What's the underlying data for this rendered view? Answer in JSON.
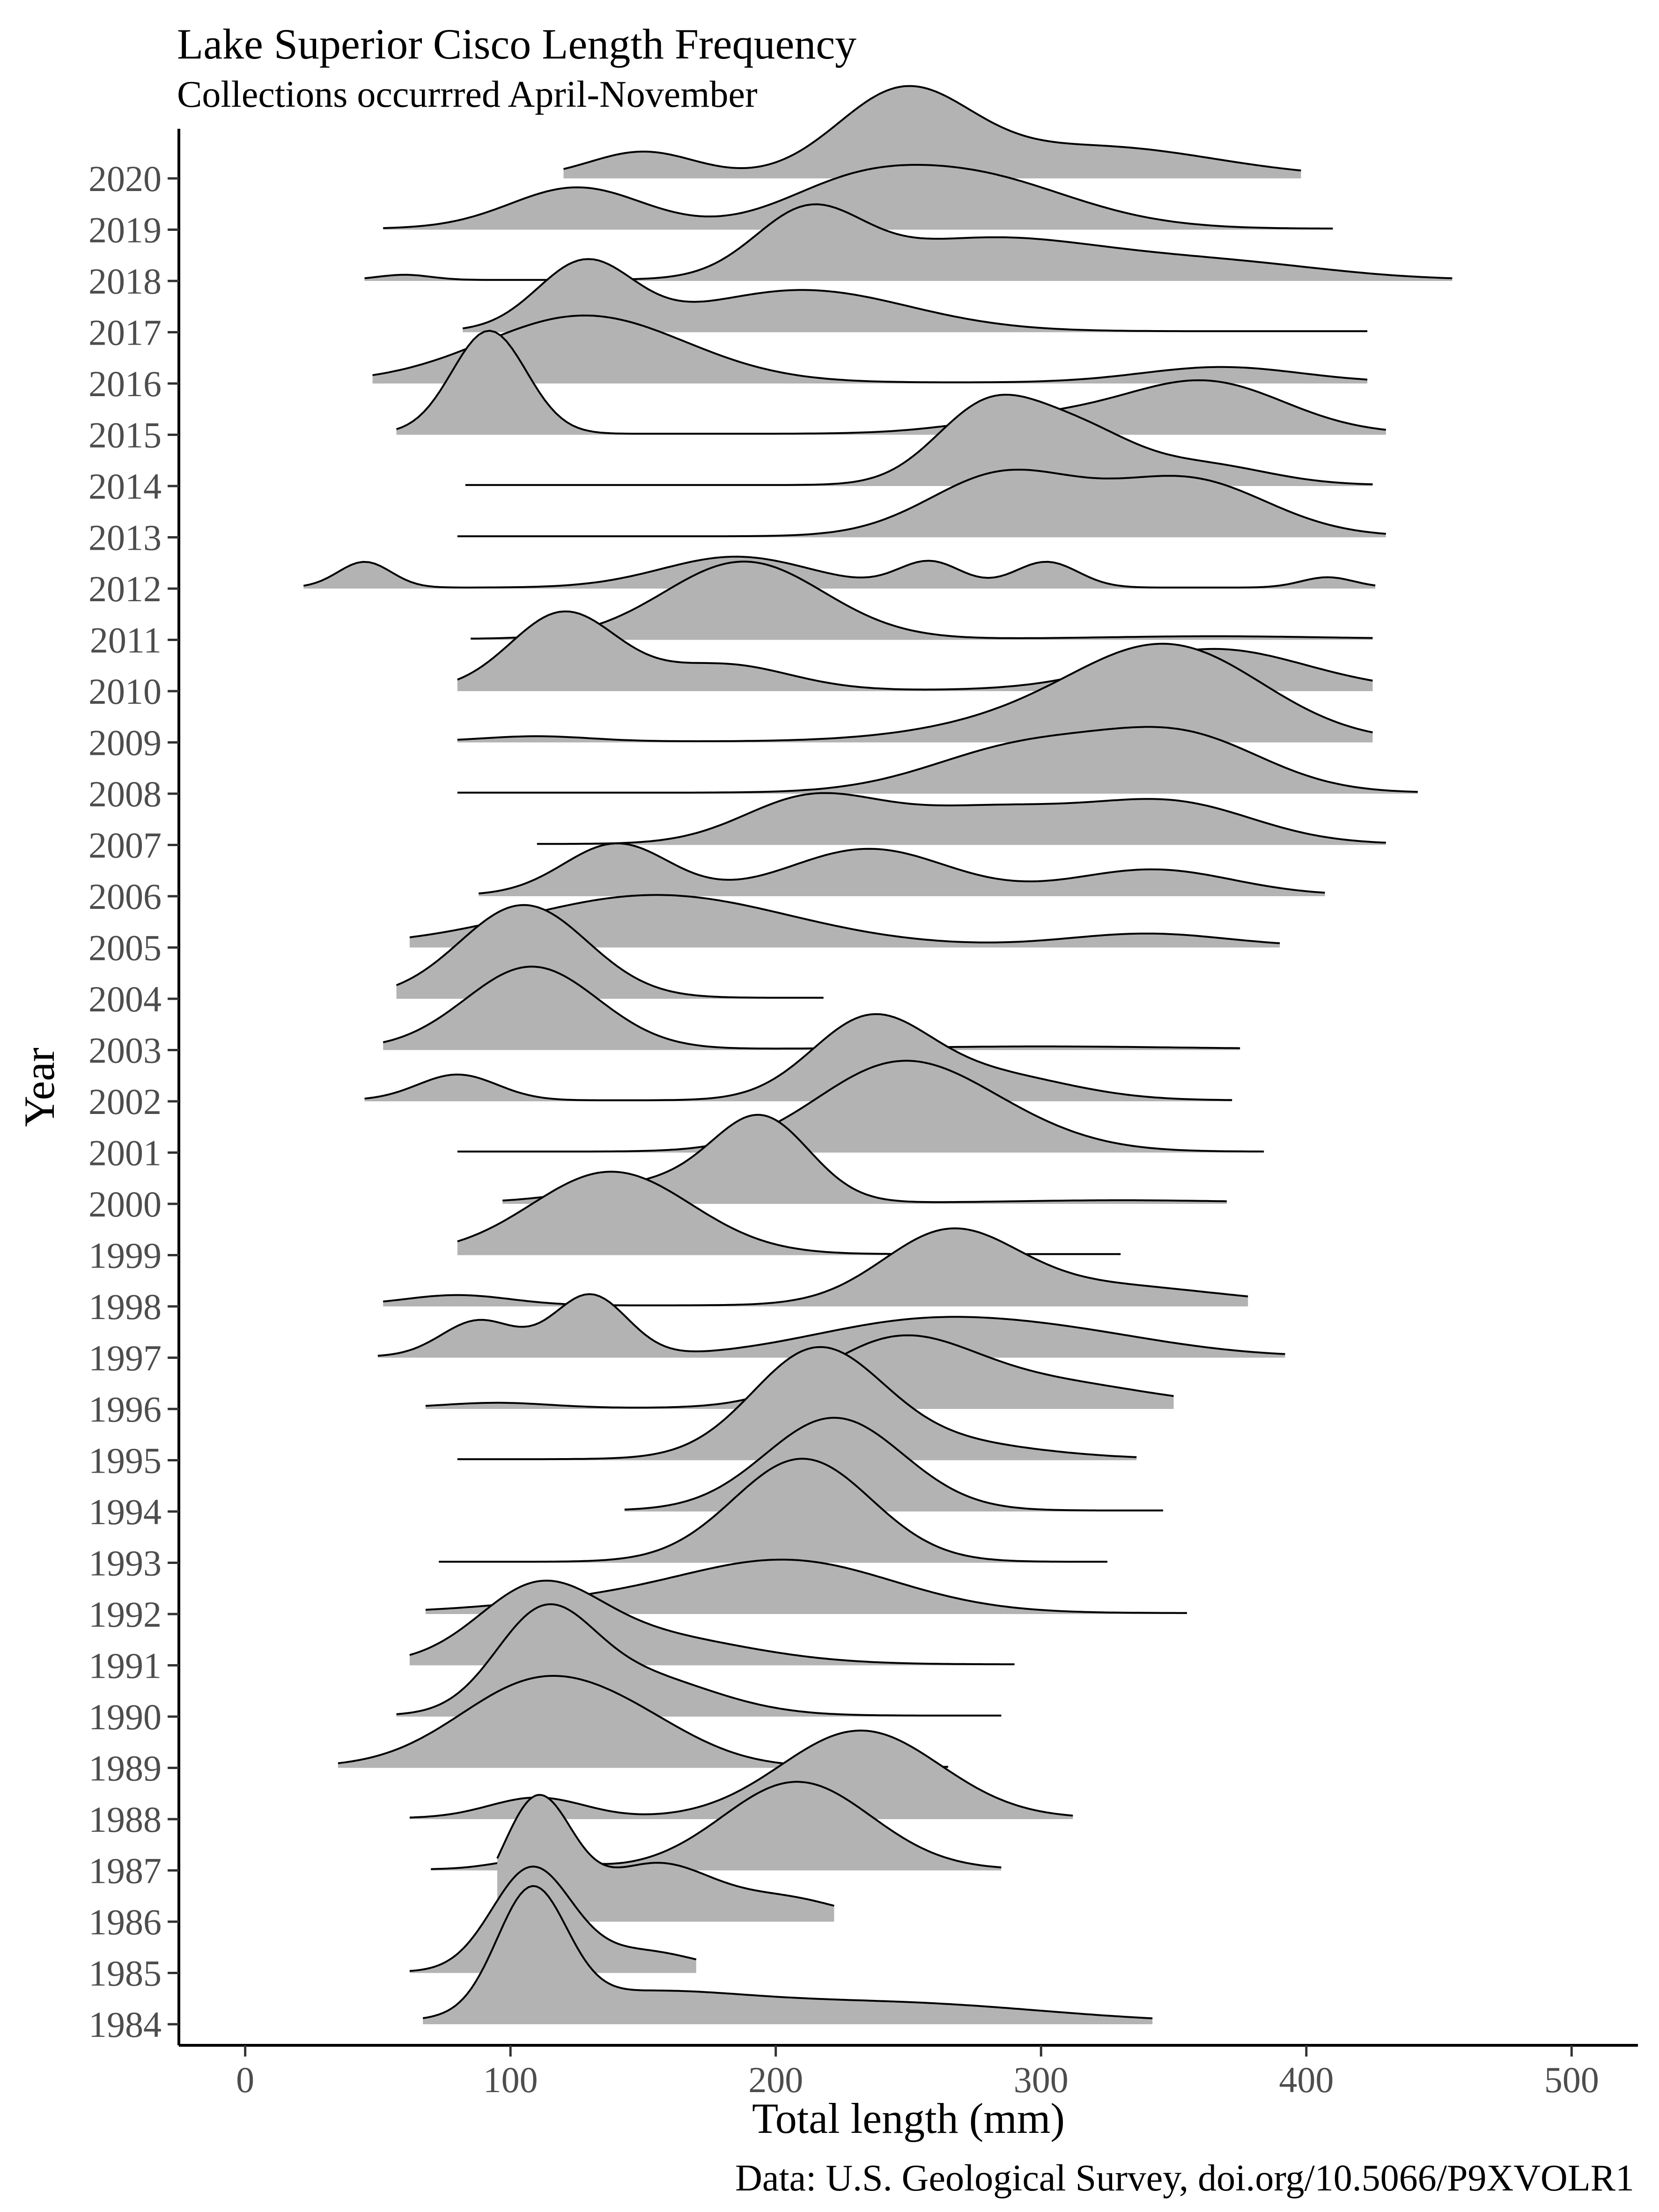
{
  "chart_data": {
    "type": "ridgeline",
    "title": "Lake Superior Cisco Length Frequency",
    "subtitle": "Collections occurrred April-November",
    "caption": "Data: U.S. Geological Survey, doi.org/10.5066/P9XVOLR1",
    "xlabel": "Total length (mm)",
    "ylabel": "Year",
    "xlim": [
      -25,
      525
    ],
    "x_ticks": [
      0,
      100,
      200,
      300,
      400,
      500
    ],
    "years": [
      "1984",
      "1985",
      "1986",
      "1987",
      "1988",
      "1989",
      "1990",
      "1991",
      "1992",
      "1993",
      "1994",
      "1995",
      "1996",
      "1997",
      "1998",
      "1999",
      "2000",
      "2001",
      "2002",
      "2003",
      "2004",
      "2005",
      "2006",
      "2007",
      "2008",
      "2009",
      "2010",
      "2011",
      "2012",
      "2013",
      "2014",
      "2015",
      "2016",
      "2017",
      "2018",
      "2019",
      "2020"
    ],
    "fill_color": "#b3b3b3",
    "line_color": "#000000",
    "grid": false,
    "legend": "none",
    "series": [
      {
        "year": "1984",
        "range": [
          67,
          342
        ],
        "peaks": [
          [
            108,
            2.3,
            13
          ],
          [
            145,
            0.5,
            40
          ],
          [
            240,
            0.4,
            60
          ]
        ]
      },
      {
        "year": "1985",
        "range": [
          62,
          170
        ],
        "peaks": [
          [
            108,
            2.0,
            15
          ],
          [
            150,
            0.4,
            20
          ]
        ]
      },
      {
        "year": "1986",
        "range": [
          95,
          222
        ],
        "peaks": [
          [
            110,
            2.3,
            13
          ],
          [
            155,
            1.1,
            22
          ],
          [
            205,
            0.4,
            20
          ]
        ]
      },
      {
        "year": "1987",
        "range": [
          70,
          285
        ],
        "peaks": [
          [
            110,
            0.2,
            15
          ],
          [
            208,
            1.7,
            28
          ]
        ]
      },
      {
        "year": "1988",
        "range": [
          62,
          312
        ],
        "peaks": [
          [
            110,
            0.4,
            18
          ],
          [
            232,
            1.7,
            30
          ]
        ]
      },
      {
        "year": "1989",
        "range": [
          35,
          265
        ],
        "peaks": [
          [
            110,
            1.6,
            30
          ],
          [
            150,
            0.5,
            25
          ]
        ]
      },
      {
        "year": "1990",
        "range": [
          57,
          285
        ],
        "peaks": [
          [
            112,
            1.7,
            18
          ],
          [
            145,
            0.8,
            30
          ]
        ]
      },
      {
        "year": "1991",
        "range": [
          62,
          290
        ],
        "peaks": [
          [
            110,
            1.2,
            22
          ],
          [
            145,
            0.6,
            40
          ]
        ]
      },
      {
        "year": "1992",
        "range": [
          68,
          355
        ],
        "peaks": [
          [
            205,
            1.0,
            40
          ],
          [
            130,
            0.2,
            40
          ]
        ]
      },
      {
        "year": "1993",
        "range": [
          73,
          325
        ],
        "peaks": [
          [
            210,
            2.0,
            26
          ]
        ]
      },
      {
        "year": "1994",
        "range": [
          143,
          346
        ],
        "peaks": [
          [
            222,
            1.8,
            26
          ]
        ]
      },
      {
        "year": "1995",
        "range": [
          80,
          336
        ],
        "peaks": [
          [
            215,
            1.9,
            24
          ],
          [
            250,
            0.4,
            40
          ]
        ]
      },
      {
        "year": "1996",
        "range": [
          68,
          350
        ],
        "peaks": [
          [
            245,
            1.2,
            28
          ],
          [
            300,
            0.5,
            40
          ],
          [
            95,
            0.1,
            20
          ]
        ]
      },
      {
        "year": "1997",
        "range": [
          50,
          392
        ],
        "peaks": [
          [
            88,
            0.7,
            14
          ],
          [
            130,
            1.2,
            14
          ],
          [
            250,
            0.6,
            40
          ],
          [
            310,
            0.4,
            40
          ]
        ]
      },
      {
        "year": "1998",
        "range": [
          52,
          378
        ],
        "peaks": [
          [
            80,
            0.2,
            20
          ],
          [
            265,
            1.3,
            25
          ],
          [
            320,
            0.4,
            45
          ]
        ]
      },
      {
        "year": "1999",
        "range": [
          80,
          330
        ],
        "peaks": [
          [
            138,
            1.6,
            30
          ]
        ]
      },
      {
        "year": "2000",
        "range": [
          97,
          370
        ],
        "peaks": [
          [
            195,
            1.5,
            18
          ],
          [
            160,
            0.4,
            30
          ],
          [
            330,
            0.05,
            40
          ]
        ]
      },
      {
        "year": "2001",
        "range": [
          80,
          384
        ],
        "peaks": [
          [
            243,
            1.5,
            30
          ],
          [
            280,
            0.5,
            30
          ]
        ]
      },
      {
        "year": "2002",
        "range": [
          45,
          372
        ],
        "peaks": [
          [
            80,
            0.5,
            15
          ],
          [
            235,
            1.5,
            22
          ],
          [
            280,
            0.5,
            30
          ]
        ]
      },
      {
        "year": "2003",
        "range": [
          52,
          375
        ],
        "peaks": [
          [
            108,
            1.6,
            25
          ],
          [
            300,
            0.05,
            50
          ]
        ]
      },
      {
        "year": "2004",
        "range": [
          57,
          218
        ],
        "peaks": [
          [
            105,
            1.8,
            24
          ]
        ]
      },
      {
        "year": "2005",
        "range": [
          62,
          390
        ],
        "peaks": [
          [
            155,
            1.0,
            50
          ],
          [
            340,
            0.25,
            30
          ]
        ]
      },
      {
        "year": "2006",
        "range": [
          88,
          407
        ],
        "peaks": [
          [
            140,
            1.0,
            20
          ],
          [
            235,
            0.9,
            30
          ],
          [
            342,
            0.5,
            30
          ]
        ]
      },
      {
        "year": "2007",
        "range": [
          110,
          430
        ],
        "peaks": [
          [
            212,
            0.8,
            25
          ],
          [
            280,
            0.7,
            40
          ],
          [
            352,
            0.7,
            30
          ]
        ]
      },
      {
        "year": "2008",
        "range": [
          80,
          442
        ],
        "peaks": [
          [
            295,
            0.9,
            35
          ],
          [
            355,
            1.0,
            30
          ]
        ]
      },
      {
        "year": "2009",
        "range": [
          80,
          425
        ],
        "peaks": [
          [
            350,
            1.7,
            35
          ],
          [
            110,
            0.1,
            20
          ],
          [
            300,
            0.4,
            40
          ]
        ]
      },
      {
        "year": "2010",
        "range": [
          80,
          425
        ],
        "peaks": [
          [
            120,
            1.5,
            20
          ],
          [
            180,
            0.5,
            25
          ],
          [
            365,
            0.8,
            35
          ]
        ]
      },
      {
        "year": "2011",
        "range": [
          85,
          425
        ],
        "peaks": [
          [
            188,
            1.5,
            30
          ],
          [
            365,
            0.05,
            40
          ]
        ]
      },
      {
        "year": "2012",
        "range": [
          22,
          426
        ],
        "peaks": [
          [
            45,
            0.5,
            10
          ],
          [
            185,
            0.6,
            28
          ],
          [
            258,
            0.5,
            12
          ],
          [
            302,
            0.5,
            12
          ],
          [
            408,
            0.2,
            10
          ]
        ]
      },
      {
        "year": "2013",
        "range": [
          80,
          430
        ],
        "peaks": [
          [
            286,
            1.2,
            28
          ],
          [
            355,
            1.1,
            30
          ]
        ]
      },
      {
        "year": "2014",
        "range": [
          83,
          425
        ],
        "peaks": [
          [
            280,
            1.5,
            20
          ],
          [
            315,
            0.9,
            20
          ],
          [
            360,
            0.4,
            25
          ]
        ]
      },
      {
        "year": "2015",
        "range": [
          57,
          430
        ],
        "peaks": [
          [
            92,
            2.0,
            14
          ],
          [
            362,
            1.0,
            30
          ],
          [
            300,
            0.3,
            30
          ]
        ]
      },
      {
        "year": "2016",
        "range": [
          48,
          423
        ],
        "peaks": [
          [
            128,
            1.3,
            38
          ],
          [
            368,
            0.3,
            30
          ]
        ]
      },
      {
        "year": "2017",
        "range": [
          82,
          423
        ],
        "peaks": [
          [
            128,
            1.3,
            18
          ],
          [
            210,
            0.8,
            40
          ]
        ]
      },
      {
        "year": "2018",
        "range": [
          45,
          455
        ],
        "peaks": [
          [
            60,
            0.1,
            10
          ],
          [
            212,
            1.2,
            20
          ],
          [
            280,
            0.8,
            45
          ],
          [
            370,
            0.3,
            40
          ]
        ]
      },
      {
        "year": "2019",
        "range": [
          52,
          410
        ],
        "peaks": [
          [
            125,
            0.8,
            25
          ],
          [
            268,
            1.1,
            40
          ],
          [
            225,
            0.4,
            25
          ]
        ]
      },
      {
        "year": "2020",
        "range": [
          120,
          398
        ],
        "peaks": [
          [
            150,
            0.5,
            20
          ],
          [
            248,
            1.6,
            25
          ],
          [
            320,
            0.6,
            45
          ]
        ]
      }
    ]
  }
}
